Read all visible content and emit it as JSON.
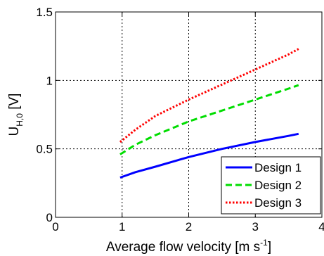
{
  "chart_data": {
    "type": "line",
    "xlabel": {
      "main": "Average flow velocity [m s",
      "sup": "-1",
      "tail": "]"
    },
    "ylabel": {
      "main": "U",
      "sub": "H,0",
      "tail": " [V]"
    },
    "xlim": [
      0,
      4
    ],
    "ylim": [
      0,
      1.5
    ],
    "xticks": [
      0,
      1,
      2,
      3,
      4
    ],
    "xtick_labels": [
      "0",
      "1",
      "2",
      "3",
      "4"
    ],
    "yticks": [
      0,
      0.5,
      1,
      1.5
    ],
    "ytick_labels": [
      "0",
      "0.5",
      "1",
      "1.5"
    ],
    "grid": true,
    "legend_position": "bottom-right",
    "series": [
      {
        "name": "Design 1",
        "color": "#0000ff",
        "dash": "solid",
        "x": [
          0.97,
          1.2,
          1.5,
          2.0,
          2.5,
          3.0,
          3.5,
          3.65
        ],
        "y": [
          0.29,
          0.33,
          0.37,
          0.44,
          0.5,
          0.55,
          0.595,
          0.61
        ]
      },
      {
        "name": "Design 2",
        "color": "#00dd00",
        "dash": "dashed",
        "x": [
          0.97,
          1.2,
          1.5,
          2.0,
          2.5,
          3.0,
          3.5,
          3.65
        ],
        "y": [
          0.46,
          0.53,
          0.6,
          0.7,
          0.78,
          0.86,
          0.94,
          0.965
        ]
      },
      {
        "name": "Design 3",
        "color": "#ff0000",
        "dash": "dotted",
        "x": [
          0.97,
          1.2,
          1.5,
          2.0,
          2.5,
          3.0,
          3.5,
          3.65
        ],
        "y": [
          0.55,
          0.64,
          0.74,
          0.86,
          0.97,
          1.08,
          1.19,
          1.23
        ]
      }
    ]
  }
}
